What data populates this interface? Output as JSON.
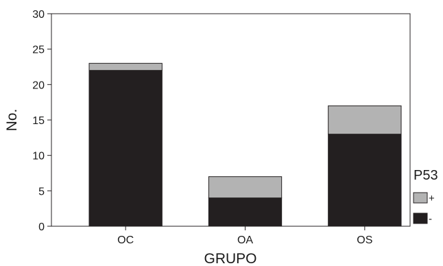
{
  "chart_data": {
    "type": "bar",
    "stacked": true,
    "title": "",
    "xlabel": "GRUPO",
    "ylabel": "No.",
    "categories": [
      "OC",
      "OA",
      "OS"
    ],
    "series": [
      {
        "name": "-",
        "values": [
          22,
          4,
          13
        ],
        "color": "#231f20"
      },
      {
        "name": "+",
        "values": [
          1,
          3,
          4
        ],
        "color": "#b3b3b3"
      }
    ],
    "ylim": [
      0,
      30
    ],
    "yticks": [
      0,
      5,
      10,
      15,
      20,
      25,
      30
    ],
    "grid": false,
    "legend": {
      "title": "P53",
      "placement": "right",
      "order": [
        "+",
        "-"
      ]
    }
  }
}
